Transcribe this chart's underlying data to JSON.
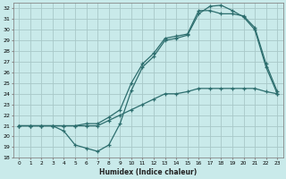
{
  "xlabel": "Humidex (Indice chaleur)",
  "x": [
    0,
    1,
    2,
    3,
    4,
    5,
    6,
    7,
    8,
    9,
    10,
    11,
    12,
    13,
    14,
    15,
    16,
    17,
    18,
    19,
    20,
    21,
    22,
    23
  ],
  "line1": [
    21,
    21,
    21,
    21,
    20.5,
    19.2,
    18.9,
    18.6,
    19.2,
    21.2,
    24.3,
    26.5,
    27.5,
    29.0,
    29.2,
    29.5,
    31.5,
    32.2,
    32.3,
    31.8,
    31.2,
    30.0,
    26.5,
    24.0
  ],
  "line2": [
    21,
    21,
    21,
    21,
    21.0,
    21.0,
    21.2,
    21.2,
    21.8,
    22.5,
    25.0,
    26.8,
    27.8,
    29.2,
    29.4,
    29.6,
    31.8,
    31.8,
    31.5,
    31.5,
    31.3,
    30.2,
    26.8,
    24.2
  ],
  "line3": [
    21,
    21,
    21,
    21,
    21.0,
    21.0,
    21.0,
    21.0,
    21.5,
    22.0,
    22.5,
    23.0,
    23.5,
    24.0,
    24.0,
    24.2,
    24.5,
    24.5,
    24.5,
    24.5,
    24.5,
    24.5,
    24.2,
    24.0
  ],
  "ylim": [
    18,
    32.5
  ],
  "xlim": [
    -0.5,
    23.5
  ],
  "bg_color": "#c9eaea",
  "line_color": "#2d6e6e",
  "grid_color": "#a8c8c8",
  "yticks": [
    18,
    19,
    20,
    21,
    22,
    23,
    24,
    25,
    26,
    27,
    28,
    29,
    30,
    31,
    32
  ],
  "xticks": [
    0,
    1,
    2,
    3,
    4,
    5,
    6,
    7,
    8,
    9,
    10,
    11,
    12,
    13,
    14,
    15,
    16,
    17,
    18,
    19,
    20,
    21,
    22,
    23
  ]
}
